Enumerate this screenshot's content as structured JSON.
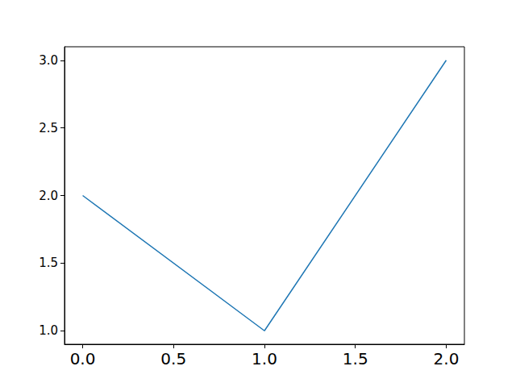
{
  "chart_data": {
    "type": "line",
    "x": [
      0,
      1,
      2
    ],
    "values": [
      2,
      1,
      3
    ],
    "color": "#1f77b4",
    "marker": "none",
    "line_style": "solid",
    "xlim": [
      -0.1,
      2.1
    ],
    "xticks": [
      {
        "value": 0,
        "label": "0.0"
      },
      {
        "value": 0.5,
        "label": "0.5"
      },
      {
        "value": 1,
        "label": "1.0"
      },
      {
        "value": 1.5,
        "label": "1.5"
      },
      {
        "value": 2,
        "label": "2.0"
      }
    ],
    "ylim": [
      0.9,
      3.1
    ],
    "yticks": [
      {
        "value": 1,
        "label": "1.0"
      },
      {
        "value": 1.5,
        "label": "1.5"
      },
      {
        "value": 2,
        "label": "2.0"
      },
      {
        "value": 2.5,
        "label": "2.5"
      },
      {
        "value": 3,
        "label": "3.0"
      }
    ],
    "grid": false
  }
}
